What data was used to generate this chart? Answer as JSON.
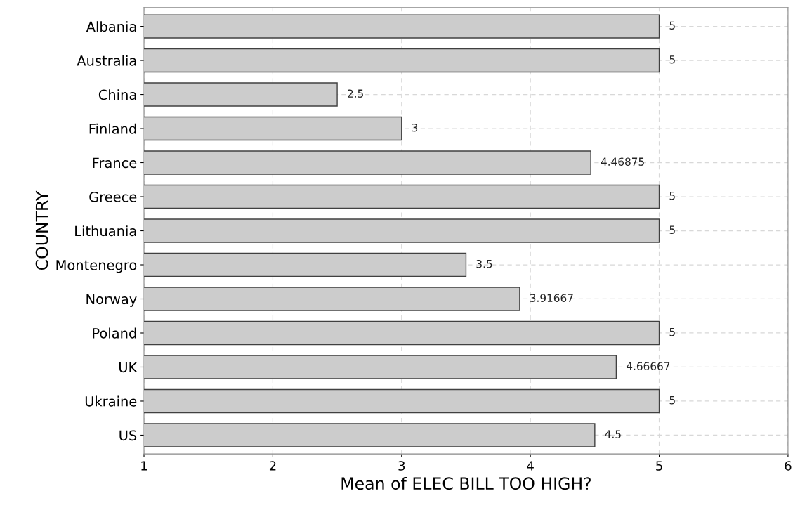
{
  "chart_data": {
    "type": "bar",
    "orientation": "horizontal",
    "xlabel": "Mean of ELEC BILL TOO HIGH?",
    "ylabel": "COUNTRY",
    "categories": [
      "Albania",
      "Australia",
      "China",
      "Finland",
      "France",
      "Greece",
      "Lithuania",
      "Montenegro",
      "Norway",
      "Poland",
      "UK",
      "Ukraine",
      "US"
    ],
    "values": [
      5,
      5,
      2.5,
      3,
      4.46875,
      5,
      5,
      3.5,
      3.91667,
      5,
      4.66667,
      5,
      4.5
    ],
    "color": "#cccccc",
    "xlim": [
      1,
      6
    ],
    "xticks": [
      1,
      2,
      3,
      4,
      5,
      6
    ],
    "grid": true,
    "data_labels": true
  }
}
